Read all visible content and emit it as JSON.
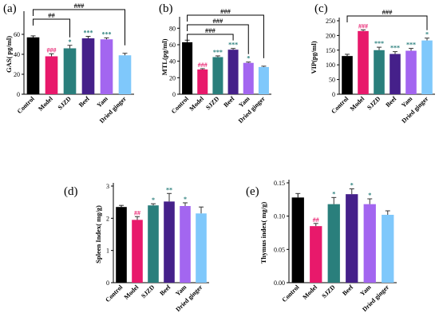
{
  "colors": {
    "Control": "#000000",
    "Model": "#e8196b",
    "SJZD": "#2a7f7c",
    "Beef": "#45208a",
    "Yam": "#a366f0",
    "Dried ginger": "#7fc8fb",
    "sig_Model": "#e8196b",
    "sig_other": "#2a7f7c"
  },
  "chart_data": [
    {
      "type": "bar",
      "panel": "(a)",
      "ylabel": "GAS( pg/ml)",
      "ylim": [
        0,
        80
      ],
      "yticks": [
        0,
        20,
        40,
        60
      ],
      "categories": [
        "Control",
        "Model",
        "SJZD",
        "Beef",
        "Yam",
        "Dried ginger"
      ],
      "values": [
        57,
        38,
        46,
        56,
        55,
        39
      ],
      "errors": [
        1.5,
        2.5,
        3,
        2,
        1.5,
        2
      ],
      "significance": [
        "",
        "###",
        "*",
        "***",
        "***",
        ""
      ],
      "brackets": [
        {
          "from": 0,
          "to": 2,
          "label": "##"
        },
        {
          "from": 0,
          "to": 5,
          "label": "###"
        }
      ]
    },
    {
      "type": "bar",
      "panel": "(b)",
      "ylabel": "MTL(pg/ml)",
      "ylim": [
        0,
        90
      ],
      "yticks": [
        0,
        20,
        40,
        60,
        80
      ],
      "categories": [
        "Control",
        "Model",
        "SJZD",
        "Beef",
        "Yam",
        "Dried ginger"
      ],
      "values": [
        63,
        30,
        45,
        54,
        38,
        33
      ],
      "errors": [
        2.5,
        1,
        1.5,
        1.5,
        1,
        1
      ],
      "significance": [
        "",
        "###",
        "***",
        "***",
        "*",
        ""
      ],
      "brackets": [
        {
          "from": 0,
          "to": 3,
          "label": "###"
        },
        {
          "from": 0,
          "to": 4,
          "label": "###"
        },
        {
          "from": 0,
          "to": 5,
          "label": "###"
        }
      ]
    },
    {
      "type": "bar",
      "panel": "(c)",
      "ylabel": "VIP(pg/ml)",
      "ylim": [
        0,
        250
      ],
      "yticks": [
        0,
        50,
        100,
        150,
        200,
        250
      ],
      "categories": [
        "Control",
        "Model",
        "SJZD",
        "Beef",
        "Yam",
        "Dried ginger"
      ],
      "values": [
        130,
        215,
        150,
        137,
        148,
        183
      ],
      "errors": [
        6,
        4,
        10,
        8,
        8,
        8
      ],
      "significance": [
        "",
        "###",
        "***",
        "***",
        "***",
        "*"
      ],
      "brackets": [
        {
          "from": 0,
          "to": 5,
          "label": "###"
        }
      ]
    },
    {
      "type": "bar",
      "panel": "(d)",
      "ylabel": "Spleen Index( mg/g)",
      "ylim": [
        0,
        3
      ],
      "yticks": [
        0,
        1,
        2,
        3
      ],
      "categories": [
        "Control",
        "Model",
        "SJZD",
        "Beef",
        "Yam",
        "Dried ginger"
      ],
      "values": [
        2.35,
        1.95,
        2.4,
        2.52,
        2.38,
        2.15
      ],
      "errors": [
        0.05,
        0.1,
        0.05,
        0.25,
        0.1,
        0.2
      ],
      "significance": [
        "",
        "##",
        "*",
        "**",
        "*",
        ""
      ],
      "brackets": []
    },
    {
      "type": "bar",
      "panel": "(e)",
      "ylabel": "Thymus index( mg/g)",
      "ylim": [
        0,
        0.15
      ],
      "yticks": [
        0,
        0.05,
        0.1,
        0.15
      ],
      "yticklabels": [
        "0.00",
        "0.05",
        "0.10",
        "0.15"
      ],
      "categories": [
        "Control",
        "Model",
        "SJZD",
        "Beef",
        "Yam",
        "Dried ginger"
      ],
      "values": [
        0.128,
        0.085,
        0.118,
        0.133,
        0.118,
        0.102
      ],
      "errors": [
        0.006,
        0.004,
        0.01,
        0.008,
        0.008,
        0.006
      ],
      "significance": [
        "",
        "##",
        "*",
        "*",
        "*",
        ""
      ],
      "brackets": []
    }
  ]
}
